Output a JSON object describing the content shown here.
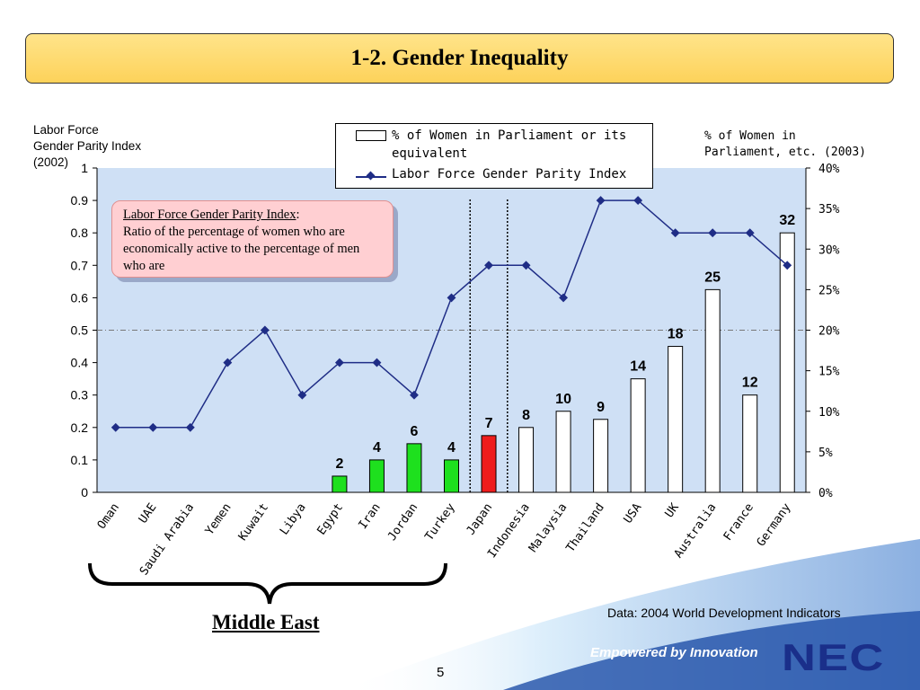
{
  "slide": {
    "title": "1-2. Gender Inequality",
    "left_axis_title": "Labor Force\nGender Parity Index\n(2002)",
    "right_axis_title": "% of Women in\nParliament, etc. (2003)",
    "legend": {
      "bar_label": "% of Women in Parliament or its equivalent",
      "line_label": "Labor Force Gender Parity Index"
    },
    "callout": {
      "term": "Labor Force Gender Parity Index",
      "colon": ":",
      "definition": "Ratio of the percentage of women who are economically active to the percentage of men who are"
    },
    "bracket_label": "Middle East",
    "source": "Data: 2004 World Development Indicators",
    "tagline": "Empowered by Innovation",
    "logo": "NEC",
    "page_number": "5"
  },
  "chart_data": {
    "type": "bar+line",
    "categories": [
      "Oman",
      "UAE",
      "Saudi Arabia",
      "Yemen",
      "Kuwait",
      "Libya",
      "Egypt",
      "Iran",
      "Jordan",
      "Turkey",
      "Japan",
      "Indonesia",
      "Malaysia",
      "Thailand",
      "USA",
      "UK",
      "Australia",
      "France",
      "Germany"
    ],
    "series": [
      {
        "name": "% of Women in Parliament or its equivalent",
        "type": "bar",
        "axis": "right",
        "values": [
          null,
          null,
          null,
          null,
          null,
          null,
          2,
          4,
          6,
          4,
          7,
          8,
          10,
          9,
          14,
          18,
          25,
          12,
          32
        ],
        "data_labels": [
          "",
          "",
          "",
          "",
          "",
          "",
          "2",
          "4",
          "6",
          "4",
          "7",
          "8",
          "10",
          "9",
          "14",
          "18",
          "25",
          "12",
          "32"
        ],
        "colors": [
          "",
          "",
          "",
          "",
          "",
          "",
          "#1ee01e",
          "#1ee01e",
          "#1ee01e",
          "#1ee01e",
          "#ee1c1c",
          "#ffffff",
          "#ffffff",
          "#ffffff",
          "#ffffff",
          "#ffffff",
          "#ffffff",
          "#ffffff",
          "#ffffff"
        ]
      },
      {
        "name": "Labor Force Gender Parity Index",
        "type": "line",
        "axis": "left",
        "color": "#1f2d86",
        "values": [
          0.2,
          0.2,
          0.2,
          0.4,
          0.5,
          0.3,
          0.4,
          0.4,
          0.3,
          0.6,
          0.7,
          0.7,
          0.6,
          0.9,
          0.9,
          0.8,
          0.8,
          0.8,
          0.7
        ]
      }
    ],
    "left_axis": {
      "ylim": [
        0,
        1
      ],
      "tick_values": [
        0,
        0.1,
        0.2,
        0.3,
        0.4,
        0.5,
        0.6,
        0.7,
        0.8,
        0.9,
        1
      ],
      "tick_labels": [
        "0",
        "0.1",
        "0.2",
        "0.3",
        "0.4",
        "0.5",
        "0.6",
        "0.7",
        "0.8",
        "0.9",
        "1"
      ]
    },
    "right_axis": {
      "ylim": [
        0,
        40
      ],
      "tick_values": [
        0,
        5,
        10,
        15,
        20,
        25,
        30,
        35,
        40
      ],
      "tick_labels": [
        "0%",
        "5%",
        "10%",
        "15%",
        "20%",
        "25%",
        "30%",
        "35%",
        "40%"
      ]
    },
    "reference_line": {
      "axis": "left",
      "value": 0.5,
      "style": "dash-dot"
    },
    "dividers_after_categories": [
      "Turkey",
      "Japan"
    ],
    "plot_background": "#cfe0f5"
  }
}
